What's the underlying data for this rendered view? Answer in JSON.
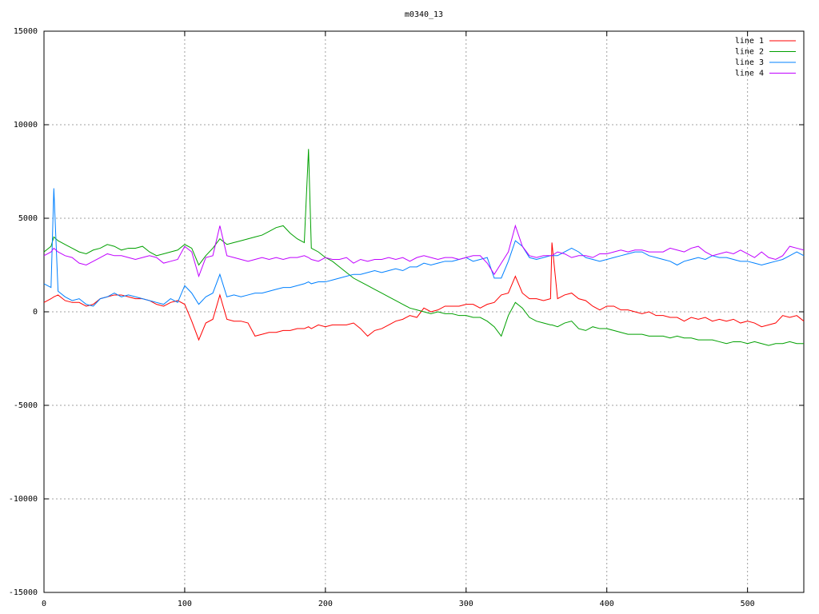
{
  "chart_data": {
    "type": "line",
    "title": "m0340_13",
    "x": [
      0,
      5,
      7,
      10,
      15,
      20,
      25,
      30,
      35,
      40,
      45,
      50,
      55,
      60,
      65,
      70,
      75,
      80,
      85,
      90,
      95,
      100,
      105,
      110,
      115,
      120,
      125,
      130,
      135,
      140,
      145,
      150,
      155,
      160,
      165,
      170,
      175,
      180,
      185,
      188,
      190,
      195,
      200,
      205,
      210,
      215,
      220,
      225,
      230,
      235,
      240,
      245,
      250,
      255,
      260,
      265,
      270,
      275,
      280,
      285,
      290,
      295,
      300,
      305,
      310,
      315,
      320,
      325,
      330,
      335,
      340,
      345,
      350,
      355,
      360,
      361,
      365,
      370,
      375,
      380,
      385,
      390,
      395,
      400,
      405,
      410,
      415,
      420,
      425,
      430,
      435,
      440,
      445,
      450,
      455,
      460,
      465,
      470,
      475,
      480,
      485,
      490,
      495,
      500,
      505,
      510,
      515,
      520,
      525,
      530,
      535,
      540
    ],
    "series": [
      {
        "name": "line 1",
        "color": "#ff0000",
        "values": [
          500,
          700,
          800,
          900,
          600,
          500,
          500,
          300,
          400,
          700,
          800,
          900,
          900,
          800,
          700,
          700,
          600,
          400,
          300,
          500,
          600,
          400,
          -500,
          -1500,
          -600,
          -400,
          900,
          -400,
          -500,
          -500,
          -600,
          -1300,
          -1200,
          -1100,
          -1100,
          -1000,
          -1000,
          -900,
          -900,
          -800,
          -900,
          -700,
          -800,
          -700,
          -700,
          -700,
          -600,
          -900,
          -1300,
          -1000,
          -900,
          -700,
          -500,
          -400,
          -200,
          -300,
          200,
          0,
          100,
          300,
          300,
          300,
          400,
          400,
          200,
          400,
          500,
          900,
          1000,
          1900,
          1000,
          700,
          700,
          600,
          700,
          3700,
          700,
          900,
          1000,
          700,
          600,
          300,
          100,
          300,
          300,
          100,
          100,
          0,
          -100,
          0,
          -200,
          -200,
          -300,
          -300,
          -500,
          -300,
          -400,
          -300,
          -500,
          -400,
          -500,
          -400,
          -600,
          -500,
          -600,
          -800,
          -700,
          -600,
          -200,
          -300,
          -200,
          -500
        ]
      },
      {
        "name": "line 2",
        "color": "#00a000",
        "values": [
          3200,
          3500,
          4000,
          3800,
          3600,
          3400,
          3200,
          3100,
          3300,
          3400,
          3600,
          3500,
          3300,
          3400,
          3400,
          3500,
          3200,
          3000,
          3100,
          3200,
          3300,
          3600,
          3400,
          2500,
          3000,
          3400,
          3900,
          3600,
          3700,
          3800,
          3900,
          4000,
          4100,
          4300,
          4500,
          4600,
          4200,
          3900,
          3700,
          8700,
          3400,
          3200,
          2900,
          2700,
          2400,
          2100,
          1800,
          1600,
          1400,
          1200,
          1000,
          800,
          600,
          400,
          200,
          100,
          0,
          -100,
          0,
          -100,
          -100,
          -200,
          -200,
          -300,
          -300,
          -500,
          -800,
          -1300,
          -200,
          500,
          200,
          -300,
          -500,
          -600,
          -700,
          -700,
          -800,
          -600,
          -500,
          -900,
          -1000,
          -800,
          -900,
          -900,
          -1000,
          -1100,
          -1200,
          -1200,
          -1200,
          -1300,
          -1300,
          -1300,
          -1400,
          -1300,
          -1400,
          -1400,
          -1500,
          -1500,
          -1500,
          -1600,
          -1700,
          -1600,
          -1600,
          -1700,
          -1600,
          -1700,
          -1800,
          -1700,
          -1700,
          -1600,
          -1700,
          -1700
        ]
      },
      {
        "name": "line 3",
        "color": "#0080ff",
        "values": [
          1500,
          1300,
          6600,
          1100,
          800,
          600,
          700,
          400,
          300,
          700,
          800,
          1000,
          800,
          900,
          800,
          700,
          600,
          500,
          400,
          700,
          500,
          1400,
          1000,
          400,
          800,
          1000,
          2000,
          800,
          900,
          800,
          900,
          1000,
          1000,
          1100,
          1200,
          1300,
          1300,
          1400,
          1500,
          1600,
          1500,
          1600,
          1600,
          1700,
          1800,
          1900,
          2000,
          2000,
          2100,
          2200,
          2100,
          2200,
          2300,
          2200,
          2400,
          2400,
          2600,
          2500,
          2600,
          2700,
          2700,
          2800,
          2900,
          2700,
          2800,
          2900,
          1800,
          1800,
          2700,
          3800,
          3500,
          2900,
          2800,
          2900,
          3000,
          3000,
          3000,
          3200,
          3400,
          3200,
          2900,
          2800,
          2700,
          2800,
          2900,
          3000,
          3100,
          3200,
          3200,
          3000,
          2900,
          2800,
          2700,
          2500,
          2700,
          2800,
          2900,
          2800,
          3000,
          2900,
          2900,
          2800,
          2700,
          2700,
          2600,
          2500,
          2600,
          2700,
          2800,
          3000,
          3200,
          3000
        ]
      },
      {
        "name": "line 4",
        "color": "#c000ff",
        "values": [
          3000,
          3200,
          3400,
          3200,
          3000,
          2900,
          2600,
          2500,
          2700,
          2900,
          3100,
          3000,
          3000,
          2900,
          2800,
          2900,
          3000,
          2900,
          2600,
          2700,
          2800,
          3500,
          3200,
          1900,
          2900,
          3000,
          4600,
          3000,
          2900,
          2800,
          2700,
          2800,
          2900,
          2800,
          2900,
          2800,
          2900,
          2900,
          3000,
          2900,
          2800,
          2700,
          2900,
          2800,
          2800,
          2900,
          2600,
          2800,
          2700,
          2800,
          2800,
          2900,
          2800,
          2900,
          2700,
          2900,
          3000,
          2900,
          2800,
          2900,
          2900,
          2800,
          2900,
          3000,
          3000,
          2600,
          2000,
          2600,
          3200,
          4600,
          3500,
          3000,
          2900,
          3000,
          3000,
          3000,
          3200,
          3100,
          2900,
          3000,
          3000,
          2900,
          3100,
          3100,
          3200,
          3300,
          3200,
          3300,
          3300,
          3200,
          3200,
          3200,
          3400,
          3300,
          3200,
          3400,
          3500,
          3200,
          3000,
          3100,
          3200,
          3100,
          3300,
          3100,
          2900,
          3200,
          2900,
          2800,
          3000,
          3500,
          3400,
          3300
        ]
      }
    ],
    "xlim": [
      0,
      540
    ],
    "xticks": [
      0,
      100,
      200,
      300,
      400,
      500
    ],
    "ylim": [
      -15000,
      15000
    ],
    "yticks": [
      -15000,
      -10000,
      -5000,
      0,
      5000,
      10000,
      15000
    ],
    "grid": true,
    "legend": "top-right"
  }
}
